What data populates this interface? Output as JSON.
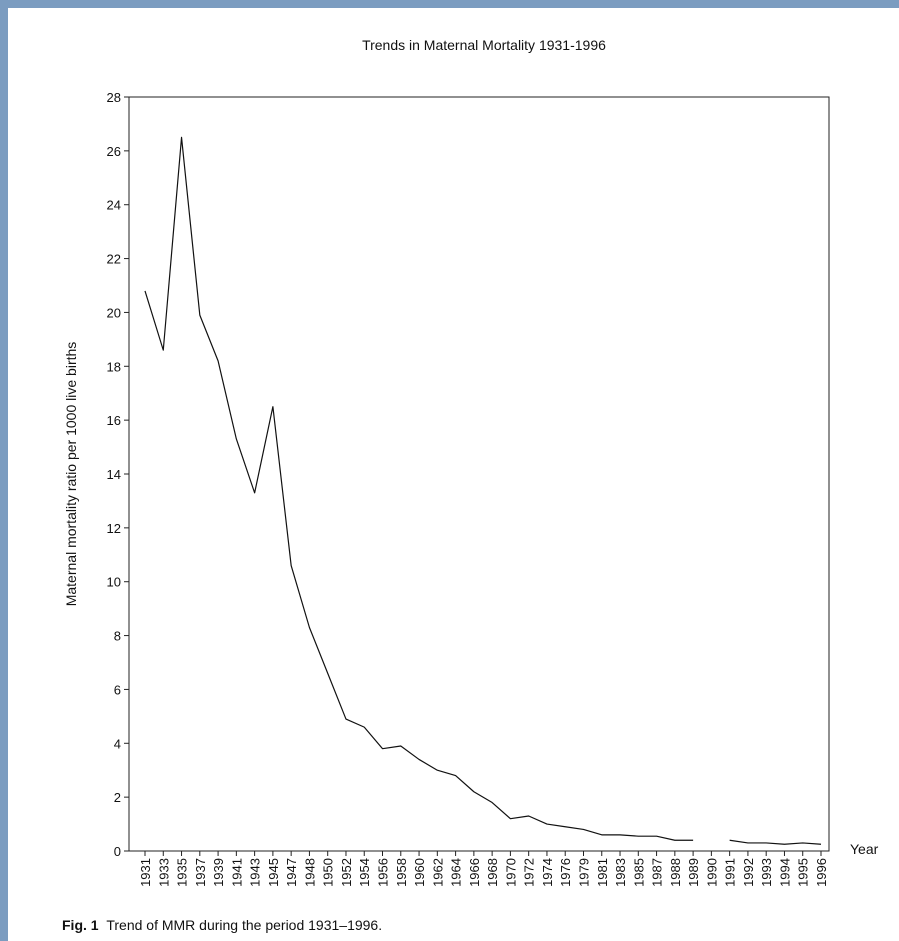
{
  "chart_data": {
    "type": "line",
    "title": "Trends in Maternal Mortality 1931-1996",
    "xlabel": "Year",
    "ylabel": "Maternal mortality ratio per 1000 live births",
    "ylim": [
      0,
      28
    ],
    "yticks": [
      0,
      2,
      4,
      6,
      8,
      10,
      12,
      14,
      16,
      18,
      20,
      22,
      24,
      26,
      28
    ],
    "grid": false,
    "categories": [
      "1931",
      "1933",
      "1935",
      "1937",
      "1939",
      "1941",
      "1943",
      "1945",
      "1947",
      "1948",
      "1950",
      "1952",
      "1954",
      "1956",
      "1958",
      "1960",
      "1962",
      "1964",
      "1966",
      "1968",
      "1970",
      "1972",
      "1974",
      "1976",
      "1979",
      "1981",
      "1983",
      "1985",
      "1987",
      "1988",
      "1989",
      "1990",
      "1991",
      "1992",
      "1993",
      "1994",
      "1995",
      "1996"
    ],
    "series": [
      {
        "values": [
          20.8,
          18.6,
          26.5,
          19.9,
          18.2,
          15.3,
          13.3,
          16.5,
          10.6,
          8.3,
          6.6,
          4.9,
          4.6,
          3.8,
          3.9,
          3.4,
          3.0,
          2.8,
          2.2,
          1.8,
          1.2,
          1.3,
          1.0,
          0.9,
          0.8,
          0.6,
          0.6,
          0.55,
          0.55,
          0.4,
          0.4,
          null,
          0.4,
          0.3,
          0.3,
          0.25,
          0.3,
          0.25
        ]
      }
    ]
  },
  "caption": {
    "label": "Fig. 1",
    "text": "Trend of MMR during the period 1931–1996."
  }
}
